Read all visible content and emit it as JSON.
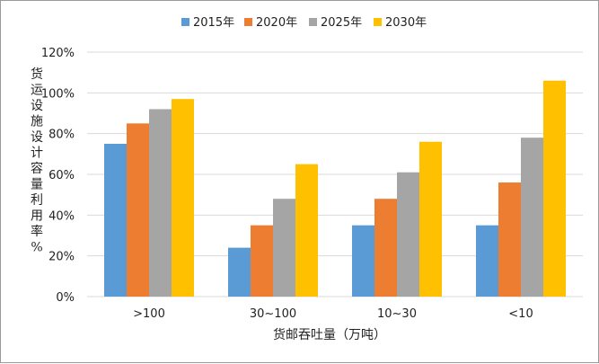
{
  "chart_data": {
    "type": "bar",
    "title": "",
    "xlabel": "货邮吞吐量（万吨）",
    "ylabel": "货运设施设计容量利用率%",
    "categories": [
      ">100",
      "30~100",
      "10~30",
      "<10"
    ],
    "series": [
      {
        "name": "2015年",
        "color": "#5b9bd5",
        "values": [
          75,
          24,
          35,
          35
        ]
      },
      {
        "name": "2020年",
        "color": "#ed7d31",
        "values": [
          85,
          35,
          48,
          56
        ]
      },
      {
        "name": "2025年",
        "color": "#a5a5a5",
        "values": [
          92,
          48,
          61,
          78
        ]
      },
      {
        "name": "2030年",
        "color": "#ffc000",
        "values": [
          97,
          65,
          76,
          106
        ]
      }
    ],
    "ylim": [
      0,
      120
    ],
    "yticks": [
      "0%",
      "20%",
      "40%",
      "60%",
      "80%",
      "100%",
      "120%"
    ],
    "grid": true,
    "legend": "top"
  }
}
